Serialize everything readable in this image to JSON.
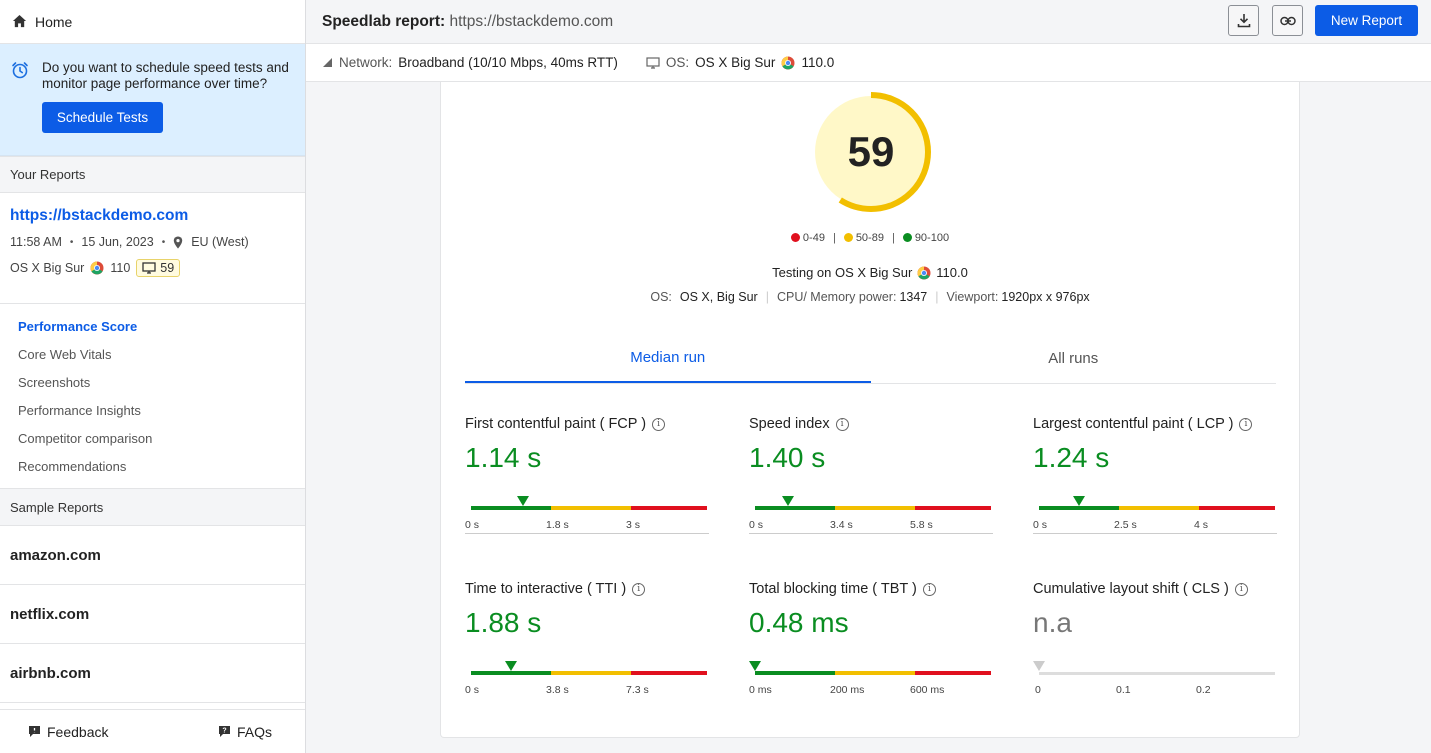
{
  "sidebar": {
    "home_label": "Home",
    "promo_text": "Do you want to schedule speed tests and monitor page performance over time?",
    "schedule_button": "Schedule Tests",
    "your_reports_heading": "Your Reports",
    "report": {
      "url": "https://bstackdemo.com",
      "time": "11:58 AM",
      "date": "15 Jun, 2023",
      "location": "EU (West)",
      "os": "OS X Big Sur",
      "browser_version": "110",
      "score": "59"
    },
    "nav": [
      {
        "label": "Performance Score",
        "active": true
      },
      {
        "label": "Core Web Vitals",
        "active": false
      },
      {
        "label": "Screenshots",
        "active": false
      },
      {
        "label": "Performance Insights",
        "active": false
      },
      {
        "label": "Competitor comparison",
        "active": false
      },
      {
        "label": "Recommendations",
        "active": false
      }
    ],
    "sample_reports_heading": "Sample Reports",
    "samples": [
      "amazon.com",
      "netflix.com",
      "airbnb.com"
    ],
    "feedback_label": "Feedback",
    "faqs_label": "FAQs"
  },
  "header": {
    "title_bold": "Speedlab report:",
    "title_url": "https://bstackdemo.com",
    "new_report_label": "New Report"
  },
  "env": {
    "network_label": "Network:",
    "network_value": "Broadband (10/10 Mbps, 40ms RTT)",
    "os_label": "OS:",
    "os_value": "OS X Big Sur",
    "browser_version": "110.0"
  },
  "score": {
    "value": 59,
    "max": 100,
    "color": "#f2bf00",
    "track_color": "#fff8c8",
    "legend": [
      {
        "label": "0-49",
        "color": "#e0101e"
      },
      {
        "label": "50-89",
        "color": "#f2bf00"
      },
      {
        "label": "90-100",
        "color": "#0a8d21"
      }
    ]
  },
  "testing": {
    "text": "Testing on OS X Big Sur",
    "browser_version": "110.0",
    "os_label": "OS:",
    "os_value": "OS X, Big Sur",
    "cpu_label": "CPU/ Memory power:",
    "cpu_value": "1347",
    "viewport_label": "Viewport:",
    "viewport_value": "1920px x 976px"
  },
  "tabs": [
    {
      "label": "Median run",
      "active": true
    },
    {
      "label": "All runs",
      "active": false
    }
  ],
  "metrics": [
    {
      "label": "First contentful paint ( FCP )",
      "value": "1.14 s",
      "ticks": [
        "0 s",
        "1.8 s",
        "3 s"
      ],
      "marker": 0.22,
      "status": "good"
    },
    {
      "label": "Speed index",
      "value": "1.40 s",
      "ticks": [
        "0 s",
        "3.4 s",
        "5.8 s"
      ],
      "marker": 0.14,
      "status": "good"
    },
    {
      "label": "Largest contentful paint ( LCP )",
      "value": "1.24 s",
      "ticks": [
        "0 s",
        "2.5 s",
        "4 s"
      ],
      "marker": 0.17,
      "status": "good"
    },
    {
      "label": "Time to interactive ( TTI )",
      "value": "1.88 s",
      "ticks": [
        "0 s",
        "3.8 s",
        "7.3 s"
      ],
      "marker": 0.17,
      "status": "good"
    },
    {
      "label": "Total blocking time ( TBT )",
      "value": "0.48 ms",
      "ticks": [
        "0 ms",
        "200 ms",
        "600 ms"
      ],
      "marker": 0.0,
      "status": "good"
    },
    {
      "label": "Cumulative layout shift ( CLS )",
      "value": "n.a",
      "ticks": [
        "0",
        "0.1",
        "0.2"
      ],
      "marker": 0.0,
      "status": "na"
    }
  ],
  "colors": {
    "accent": "#0c5ce6",
    "good": "#0a8d21",
    "average": "#f2bf00",
    "poor": "#e0101e",
    "na": "#dddddd"
  }
}
